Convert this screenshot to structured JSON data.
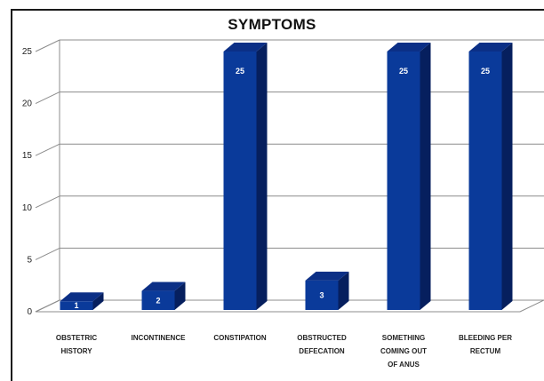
{
  "chart_data": {
    "type": "bar",
    "title": "SYMPTOMS",
    "categories": [
      [
        "OBSTETRIC",
        "HISTORY"
      ],
      [
        "INCONTINENCE"
      ],
      [
        "CONSTIPATION"
      ],
      [
        "OBSTRUCTED",
        "DEFECATION"
      ],
      [
        "SOMETHING",
        "COMING OUT",
        "OF ANUS"
      ],
      [
        "BLEEDING PER",
        "RECTUM"
      ]
    ],
    "values": [
      1,
      2,
      25,
      3,
      25,
      25
    ],
    "data_labels": [
      "1",
      "2",
      "25",
      "3",
      "25",
      "25"
    ],
    "ylim": [
      0,
      25
    ],
    "yticks": [
      0,
      5,
      10,
      15,
      20,
      25
    ],
    "grid": true,
    "colors": {
      "bar_front": "#0a3a9a",
      "bar_top": "#0b2f86",
      "bar_side": "#061f5e",
      "grid": "#8c8c8c",
      "floor": "#8c8c8c"
    }
  }
}
